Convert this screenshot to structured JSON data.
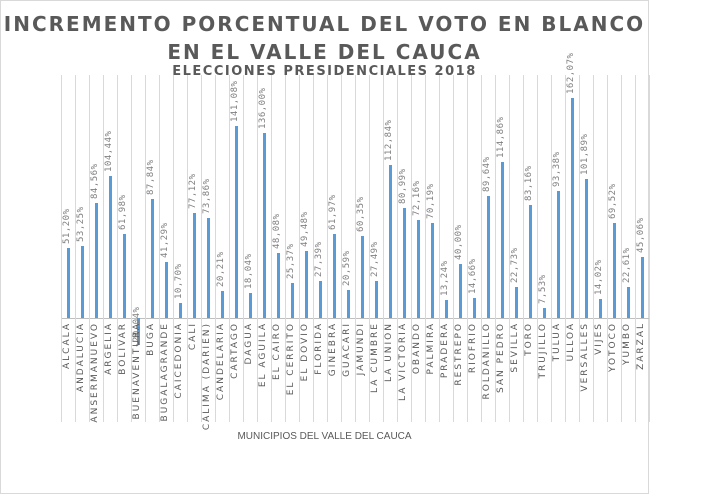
{
  "chart_data": {
    "type": "bar",
    "title": "INCREMENTO PORCENTUAL DEL VOTO EN BLANCO",
    "title_line2": "EN EL VALLE DEL CAUCA",
    "subtitle": "ELECCIONES PRESIDENCIALES 2018",
    "xlabel": "MUNICIPIOS DEL VALLE DEL CAUCA",
    "ylabel": "",
    "grid": true,
    "legend": null,
    "bar_color": "#5b9bd5",
    "categories": [
      "ALCALA",
      "ANDALUCIA",
      "ANSERMANUEVO",
      "ARGELIA",
      "BOLIVAR",
      "BUENAVENTURA",
      "BUGA",
      "BUGALAGRANDE",
      "CAICEDONIA",
      "CALI",
      "CALIMA (DARIEN)",
      "CANDELARIA",
      "CARTAGO",
      "DAGUA",
      "EL AGUILA",
      "EL CAIRO",
      "EL CERRITO",
      "EL DOVIO",
      "FLORIDA",
      "GINEBRA",
      "GUACARI",
      "JAMUNDI",
      "LA CUMBRE",
      "LA UNION",
      "LA VICTORIA",
      "OBANDO",
      "PALMIRA",
      "PRADERA",
      "RESTREPO",
      "RIOFRIO",
      "ROLDANILLO",
      "SAN PEDRO",
      "SEVILLA",
      "TORO",
      "TRUJILLO",
      "TULUA",
      "ULLOA",
      "VERSALLES",
      "VIJES",
      "YOTOCO",
      "YUMBO",
      "ZARZAL"
    ],
    "values": [
      51.2,
      53.25,
      84.56,
      104.44,
      61.98,
      -20.04,
      87.84,
      41.29,
      10.7,
      77.12,
      73.86,
      20.21,
      141.08,
      18.04,
      136.0,
      48.08,
      25.37,
      49.48,
      27.39,
      61.97,
      20.59,
      60.35,
      27.49,
      112.84,
      80.99,
      72.16,
      70.19,
      13.24,
      40.0,
      14.66,
      89.64,
      114.86,
      22.73,
      83.16,
      7.53,
      93.38,
      162.07,
      101.89,
      14.02,
      69.52,
      22.61,
      45.06
    ],
    "labels": [
      "51,20%",
      "53,25%",
      "84,56%",
      "104,44%",
      "61,98%",
      "-20,04%",
      "87,84%",
      "41,29%",
      "10,70%",
      "77,12%",
      "73,86%",
      "20,21%",
      "141,08%",
      "18,04%",
      "136,00%",
      "48,08%",
      "25,37%",
      "49,48%",
      "27,39%",
      "61,97%",
      "20,59%",
      "60,35%",
      "27,49%",
      "112,84%",
      "80,99%",
      "72,16%",
      "70,19%",
      "13,24%",
      "40,00%",
      "14,66%",
      "89,64%",
      "114,86%",
      "22,73%",
      "83,16%",
      "7,53%",
      "93,38%",
      "162,07%",
      "101,89%",
      "14,02%",
      "69,52%",
      "22,61%",
      "45,06%"
    ]
  }
}
